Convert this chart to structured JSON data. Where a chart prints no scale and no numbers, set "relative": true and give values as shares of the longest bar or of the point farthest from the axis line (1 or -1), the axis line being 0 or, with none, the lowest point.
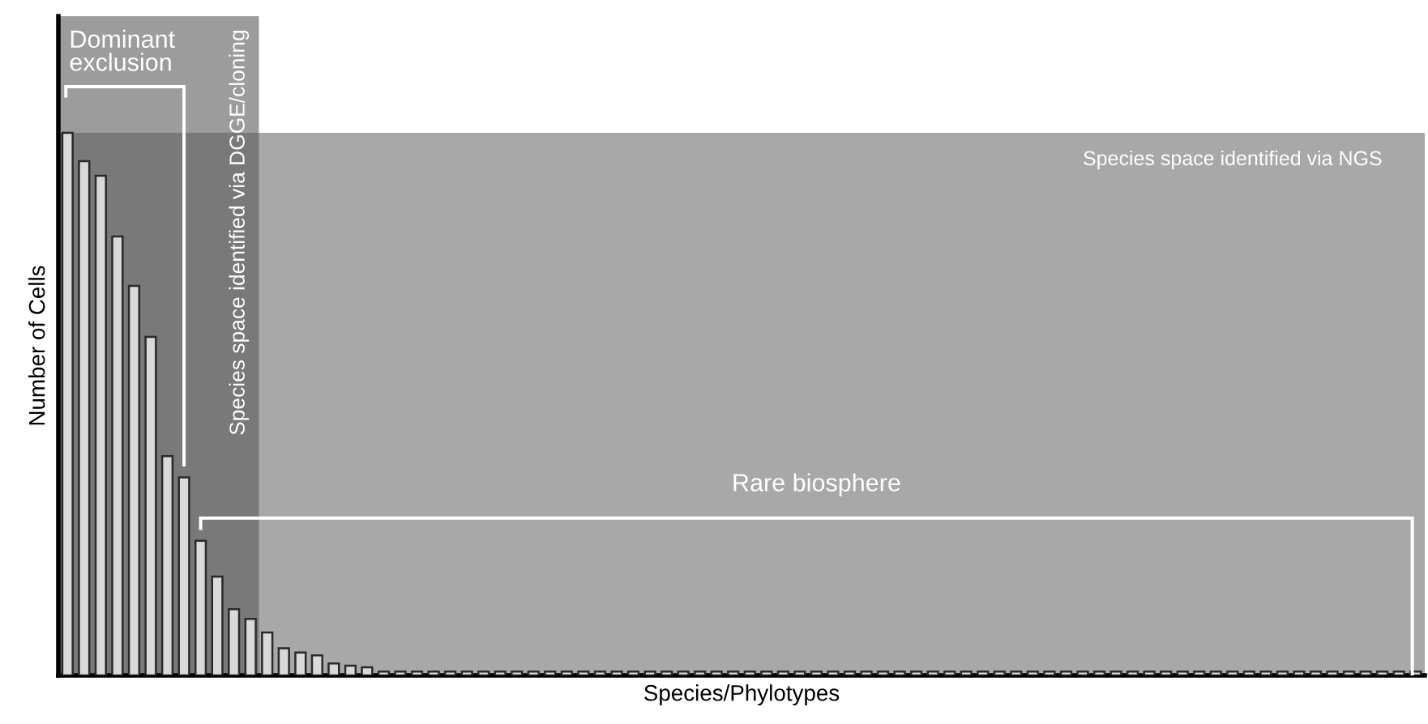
{
  "chart_data": {
    "type": "bar",
    "relative": true,
    "xlabel": "Species/Phylotypes",
    "ylabel": "Number of Cells",
    "categories": [
      null,
      null,
      null,
      null,
      null,
      null,
      null,
      null,
      null,
      null,
      null,
      null,
      null,
      null,
      null,
      null,
      null,
      null,
      null,
      null,
      null,
      null,
      null,
      null,
      null,
      null,
      null,
      null,
      null,
      null,
      null,
      null,
      null,
      null,
      null,
      null,
      null,
      null,
      null,
      null,
      null,
      null,
      null,
      null,
      null,
      null,
      null,
      null,
      null,
      null,
      null,
      null,
      null,
      null,
      null,
      null,
      null,
      null,
      null,
      null,
      null,
      null,
      null,
      null,
      null,
      null,
      null,
      null,
      null,
      null,
      null,
      null,
      null,
      null,
      null,
      null,
      null,
      null,
      null,
      null,
      null,
      null
    ],
    "values": [
      1,
      0.948,
      0.921,
      0.809,
      0.718,
      0.624,
      0.404,
      0.365,
      0.248,
      0.182,
      0.122,
      0.104,
      0.079,
      0.05,
      0.042,
      0.037,
      0.022,
      0.018,
      0.015,
      0.007,
      0.007,
      0.007,
      0.007,
      0.007,
      0.007,
      0.007,
      0.007,
      0.007,
      0.007,
      0.007,
      0.007,
      0.007,
      0.007,
      0.007,
      0.007,
      0.007,
      0.007,
      0.007,
      0.007,
      0.007,
      0.007,
      0.007,
      0.007,
      0.007,
      0.007,
      0.007,
      0.007,
      0.007,
      0.007,
      0.007,
      0.007,
      0.007,
      0.007,
      0.007,
      0.007,
      0.007,
      0.007,
      0.007,
      0.007,
      0.007,
      0.007,
      0.007,
      0.007,
      0.007,
      0.007,
      0.007,
      0.007,
      0.007,
      0.007,
      0.007,
      0.007,
      0.007,
      0.007,
      0.007,
      0.007,
      0.007,
      0.007,
      0.007,
      0.007,
      0.007,
      0.007,
      0.007
    ],
    "color": "#d9d9d9",
    "bands": [
      {
        "axis": "y",
        "from": 0,
        "to": 1,
        "label": "Species space identified via NGS",
        "color": "#a8a8a8"
      }
    ],
    "annotations": [
      "Dominant\nexclusion",
      "Rare biosphere",
      "Species space identified via DGGE/cloning"
    ]
  }
}
